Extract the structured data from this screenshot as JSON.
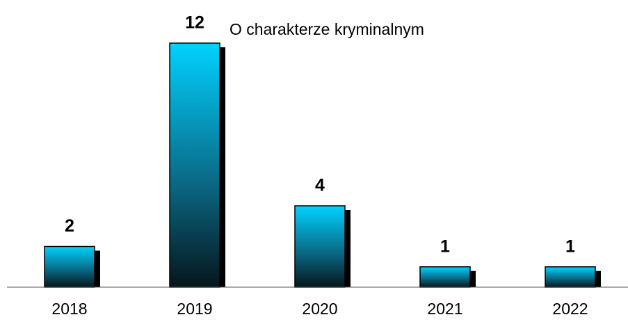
{
  "chart_data": {
    "type": "bar",
    "title": "O charakterze kryminalnym",
    "categories": [
      "2018",
      "2019",
      "2020",
      "2021",
      "2022"
    ],
    "values": [
      2,
      12,
      4,
      1,
      1
    ],
    "color": "#00ccff",
    "ylim": [
      0,
      12
    ]
  }
}
